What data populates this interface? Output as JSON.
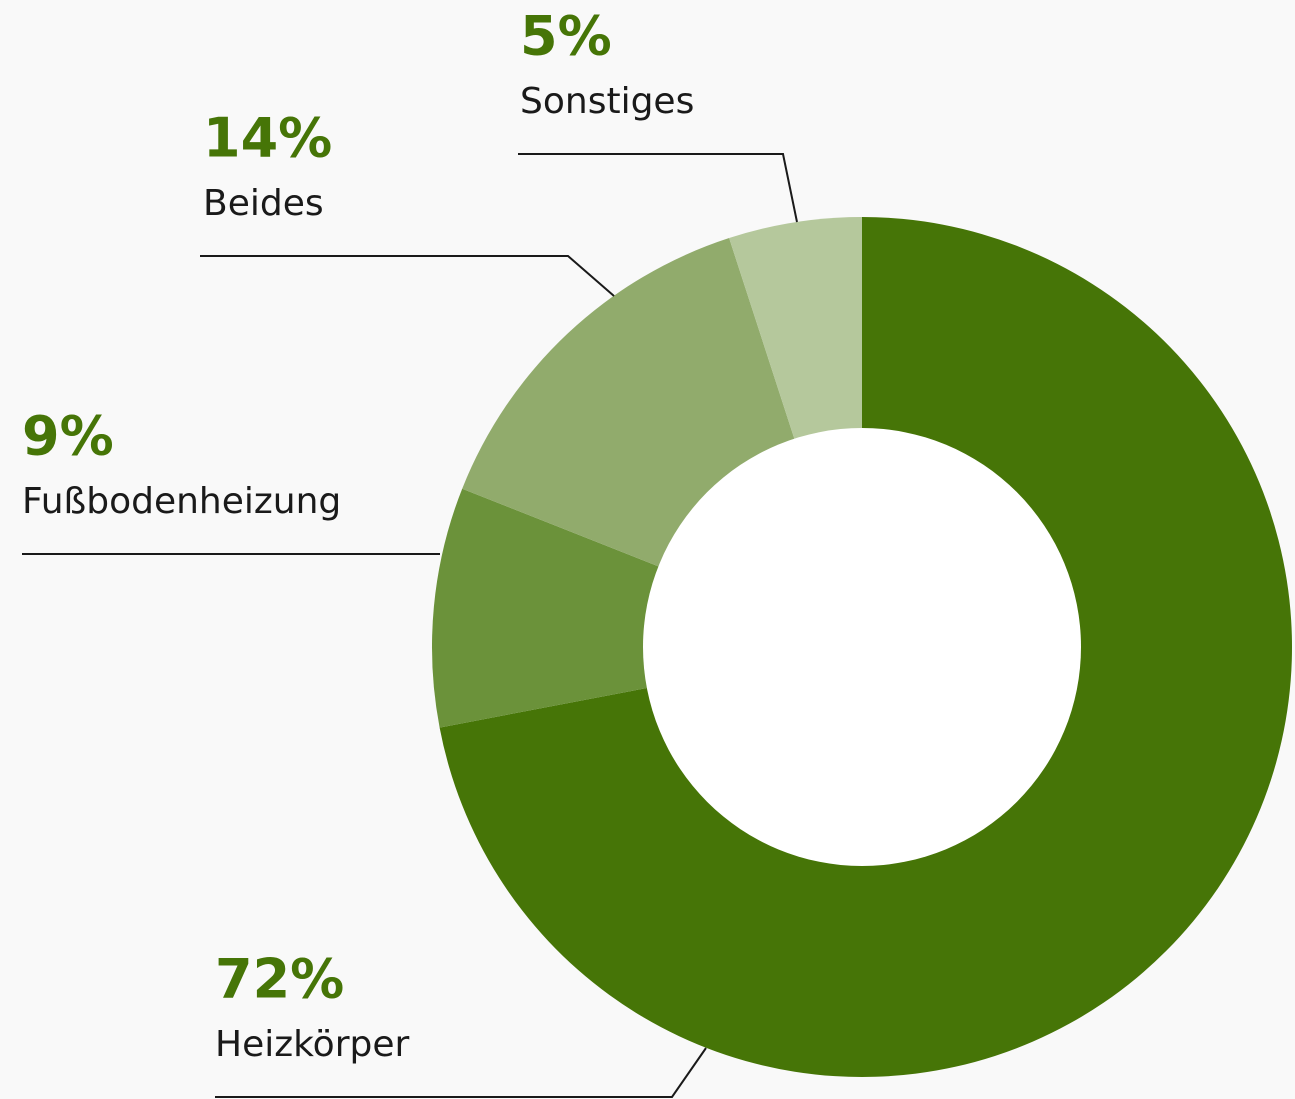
{
  "chart_data": {
    "type": "donut",
    "categories": [
      "Heizkörper",
      "Fußbodenheizung",
      "Beides",
      "Sonstiges"
    ],
    "values": [
      72,
      9,
      14,
      5
    ],
    "value_labels": [
      "72%",
      "9%",
      "14%",
      "5%"
    ],
    "colors": [
      "#467507",
      "#6b923a",
      "#91ab6c",
      "#b5c89c"
    ]
  }
}
